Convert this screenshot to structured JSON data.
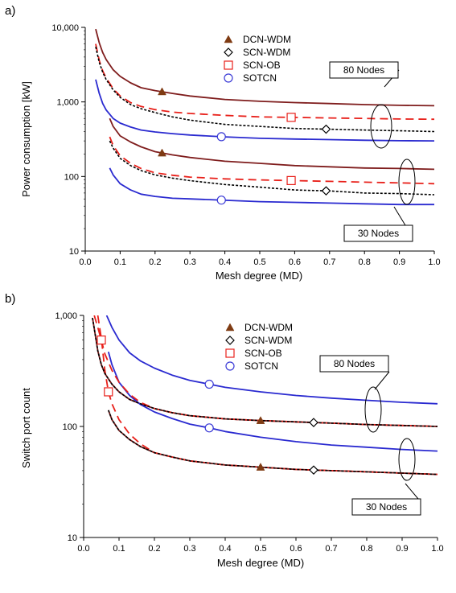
{
  "chart_data": [
    {
      "type": "line",
      "panel_label": "a)",
      "xlabel": "Mesh degree (MD)",
      "ylabel": "Power consumption [kW]",
      "yscale": "log",
      "xlim": [
        0.0,
        1.0
      ],
      "ylim": [
        10,
        10000
      ],
      "xticks": [
        "0.0",
        "0.1",
        "0.2",
        "0.3",
        "0.4",
        "0.5",
        "0.6",
        "0.7",
        "0.8",
        "0.9",
        "1.0"
      ],
      "yticks": [
        {
          "v": 10,
          "label": "10"
        },
        {
          "v": 100,
          "label": "100"
        },
        {
          "v": 1000,
          "label": "1,000"
        },
        {
          "v": 10000,
          "label": "10,000"
        }
      ],
      "legend": {
        "position": "top-center",
        "entries": [
          {
            "label": "DCN-WDM",
            "marker": "triangle",
            "color": "#7f3b13"
          },
          {
            "label": "SCN-WDM",
            "marker": "diamond",
            "color": "#000000"
          },
          {
            "label": "SCN-OB",
            "marker": "square",
            "color": "#e8201a"
          },
          {
            "label": "SOTCN",
            "marker": "circle",
            "color": "#3a3ad6"
          }
        ]
      },
      "annotations": [
        "80 Nodes",
        "30 Nodes"
      ],
      "series": [
        {
          "group": "80 Nodes",
          "style": "dcn",
          "marker_at": 0.22,
          "x": [
            0.03,
            0.04,
            0.05,
            0.06,
            0.08,
            0.1,
            0.13,
            0.16,
            0.2,
            0.25,
            0.3,
            0.4,
            0.5,
            0.6,
            0.7,
            0.8,
            0.9,
            1.0
          ],
          "y": [
            9500,
            6200,
            4600,
            3700,
            2700,
            2200,
            1800,
            1550,
            1420,
            1300,
            1200,
            1080,
            1020,
            980,
            950,
            920,
            900,
            890
          ]
        },
        {
          "group": "80 Nodes",
          "style": "scn_wdm",
          "marker_at": 0.69,
          "x": [
            0.03,
            0.04,
            0.05,
            0.06,
            0.08,
            0.1,
            0.13,
            0.16,
            0.2,
            0.25,
            0.3,
            0.4,
            0.5,
            0.6,
            0.7,
            0.8,
            0.9,
            1.0
          ],
          "y": [
            5500,
            3400,
            2500,
            2000,
            1450,
            1150,
            920,
            810,
            720,
            630,
            570,
            500,
            470,
            440,
            430,
            420,
            410,
            400
          ]
        },
        {
          "group": "80 Nodes",
          "style": "scn_ob",
          "marker_at": 0.59,
          "x": [
            0.03,
            0.04,
            0.05,
            0.06,
            0.08,
            0.1,
            0.13,
            0.16,
            0.2,
            0.25,
            0.3,
            0.4,
            0.5,
            0.6,
            0.7,
            0.8,
            0.9,
            1.0
          ],
          "y": [
            6000,
            3600,
            2600,
            2100,
            1500,
            1200,
            980,
            870,
            790,
            730,
            700,
            660,
            630,
            620,
            610,
            600,
            590,
            585
          ]
        },
        {
          "group": "80 Nodes",
          "style": "sotcn",
          "marker_at": 0.39,
          "x": [
            0.03,
            0.04,
            0.05,
            0.06,
            0.08,
            0.1,
            0.13,
            0.16,
            0.2,
            0.25,
            0.3,
            0.4,
            0.5,
            0.6,
            0.7,
            0.8,
            0.9,
            1.0
          ],
          "y": [
            2000,
            1300,
            950,
            780,
            600,
            520,
            460,
            420,
            395,
            375,
            360,
            340,
            325,
            318,
            312,
            306,
            302,
            300
          ]
        },
        {
          "group": "30 Nodes",
          "style": "dcn",
          "marker_at": 0.22,
          "x": [
            0.07,
            0.08,
            0.1,
            0.13,
            0.16,
            0.2,
            0.25,
            0.3,
            0.4,
            0.5,
            0.6,
            0.7,
            0.8,
            0.9,
            1.0
          ],
          "y": [
            600,
            470,
            350,
            290,
            250,
            215,
            195,
            180,
            160,
            150,
            140,
            135,
            130,
            128,
            125
          ]
        },
        {
          "group": "30 Nodes",
          "style": "scn_wdm",
          "marker_at": 0.69,
          "x": [
            0.07,
            0.08,
            0.1,
            0.13,
            0.16,
            0.2,
            0.25,
            0.3,
            0.4,
            0.5,
            0.6,
            0.7,
            0.8,
            0.9,
            1.0
          ],
          "y": [
            300,
            240,
            175,
            140,
            120,
            105,
            95,
            88,
            78,
            72,
            66,
            64,
            60,
            59,
            57
          ]
        },
        {
          "group": "30 Nodes",
          "style": "scn_ob",
          "marker_at": 0.59,
          "x": [
            0.07,
            0.08,
            0.1,
            0.13,
            0.16,
            0.2,
            0.25,
            0.3,
            0.4,
            0.5,
            0.6,
            0.7,
            0.8,
            0.9,
            1.0
          ],
          "y": [
            340,
            260,
            190,
            150,
            128,
            112,
            104,
            98,
            93,
            90,
            88,
            86,
            84,
            82,
            80
          ]
        },
        {
          "group": "30 Nodes",
          "style": "sotcn",
          "marker_at": 0.39,
          "x": [
            0.07,
            0.08,
            0.1,
            0.13,
            0.16,
            0.2,
            0.25,
            0.3,
            0.4,
            0.5,
            0.6,
            0.7,
            0.8,
            0.9,
            1.0
          ],
          "y": [
            130,
            105,
            80,
            66,
            58,
            54,
            51,
            50,
            48,
            46,
            45,
            44,
            43,
            42,
            42
          ]
        }
      ]
    },
    {
      "type": "line",
      "panel_label": "b)",
      "xlabel": "Mesh degree (MD)",
      "ylabel": "Switch port count",
      "yscale": "log",
      "xlim": [
        0.0,
        1.0
      ],
      "ylim": [
        10,
        1000
      ],
      "xticks": [
        "0.0",
        "0.1",
        "0.2",
        "0.3",
        "0.4",
        "0.5",
        "0.6",
        "0.7",
        "0.8",
        "0.9",
        "1.0"
      ],
      "yticks": [
        {
          "v": 10,
          "label": "10"
        },
        {
          "v": 100,
          "label": "100"
        },
        {
          "v": 1000,
          "label": "1,000"
        }
      ],
      "legend": {
        "position": "top-center",
        "entries": [
          {
            "label": "DCN-WDM",
            "marker": "triangle",
            "color": "#7f3b13"
          },
          {
            "label": "SCN-WDM",
            "marker": "diamond",
            "color": "#000000"
          },
          {
            "label": "SCN-OB",
            "marker": "square",
            "color": "#e8201a"
          },
          {
            "label": "SOTCN",
            "marker": "circle",
            "color": "#3a3ad6"
          }
        ]
      },
      "annotations": [
        "80 Nodes",
        "30 Nodes"
      ],
      "series": [
        {
          "group": "80 Nodes",
          "style": "dcn",
          "marker_at": 0.5,
          "x": [
            0.025,
            0.03,
            0.04,
            0.05,
            0.06,
            0.08,
            0.1,
            0.13,
            0.16,
            0.2,
            0.25,
            0.3,
            0.4,
            0.5,
            0.6,
            0.7,
            0.8,
            0.9,
            1.0
          ],
          "y": [
            950,
            760,
            480,
            360,
            300,
            240,
            205,
            175,
            160,
            145,
            133,
            125,
            117,
            113,
            110,
            107,
            104,
            102,
            100
          ]
        },
        {
          "group": "80 Nodes",
          "style": "scn_wdm",
          "marker_at": 0.65,
          "x": [
            0.025,
            0.03,
            0.04,
            0.05,
            0.06,
            0.08,
            0.1,
            0.13,
            0.16,
            0.2,
            0.25,
            0.3,
            0.4,
            0.5,
            0.6,
            0.7,
            0.8,
            0.9,
            1.0
          ],
          "y": [
            950,
            760,
            480,
            360,
            300,
            240,
            205,
            175,
            160,
            145,
            133,
            125,
            117,
            113,
            110,
            107,
            104,
            102,
            100
          ]
        },
        {
          "group": "80 Nodes",
          "style": "scn_ob",
          "marker_at": 0.05,
          "x": [
            0.03,
            0.04,
            0.05,
            0.06,
            0.08,
            0.1,
            0.13,
            0.16,
            0.2,
            0.25,
            0.3,
            0.4,
            0.5,
            0.6,
            0.7,
            0.8,
            0.9,
            1.0
          ],
          "y": [
            1000,
            780,
            600,
            450,
            320,
            250,
            195,
            165,
            145,
            133,
            125,
            117,
            113,
            110,
            107,
            104,
            102,
            100
          ]
        },
        {
          "group": "80 Nodes",
          "style": "sotcn",
          "marker_at": 0.355,
          "x": [
            0.065,
            0.08,
            0.1,
            0.13,
            0.16,
            0.2,
            0.25,
            0.3,
            0.355,
            0.4,
            0.5,
            0.6,
            0.7,
            0.8,
            0.9,
            1.0
          ],
          "y": [
            1000,
            780,
            600,
            460,
            390,
            335,
            290,
            260,
            240,
            225,
            205,
            190,
            180,
            172,
            165,
            160
          ]
        },
        {
          "group": "30 Nodes",
          "style": "dcn",
          "marker_at": 0.5,
          "x": [
            0.07,
            0.08,
            0.1,
            0.13,
            0.16,
            0.2,
            0.25,
            0.3,
            0.4,
            0.5,
            0.6,
            0.7,
            0.8,
            0.9,
            1.0
          ],
          "y": [
            140,
            115,
            92,
            76,
            66,
            58,
            53,
            49,
            45,
            43,
            41,
            40,
            39,
            38,
            37
          ]
        },
        {
          "group": "30 Nodes",
          "style": "scn_wdm",
          "marker_at": 0.65,
          "x": [
            0.07,
            0.08,
            0.1,
            0.13,
            0.16,
            0.2,
            0.25,
            0.3,
            0.4,
            0.5,
            0.6,
            0.7,
            0.8,
            0.9,
            1.0
          ],
          "y": [
            140,
            115,
            92,
            76,
            66,
            58,
            53,
            49,
            45,
            43,
            41,
            40,
            39,
            38,
            37
          ]
        },
        {
          "group": "30 Nodes",
          "style": "scn_ob",
          "marker_at": 0.07,
          "x": [
            0.04,
            0.05,
            0.06,
            0.07,
            0.08,
            0.1,
            0.13,
            0.16,
            0.2,
            0.25,
            0.3,
            0.4,
            0.5,
            0.6,
            0.7,
            0.8,
            0.9,
            1.0
          ],
          "y": [
            1000,
            620,
            320,
            205,
            160,
            115,
            85,
            70,
            58,
            53,
            49,
            45,
            43,
            41,
            40,
            39,
            38,
            37
          ]
        },
        {
          "group": "30 Nodes",
          "style": "sotcn",
          "marker_at": 0.355,
          "x": [
            0.07,
            0.08,
            0.1,
            0.13,
            0.16,
            0.2,
            0.25,
            0.3,
            0.355,
            0.4,
            0.5,
            0.6,
            0.7,
            0.8,
            0.9,
            1.0
          ],
          "y": [
            470,
            360,
            250,
            190,
            158,
            135,
            118,
            105,
            97,
            90,
            80,
            73,
            68,
            65,
            62,
            60
          ]
        }
      ]
    }
  ],
  "style_map": {
    "dcn": {
      "color": "#7f1d1d",
      "dash": "",
      "width": 1.8,
      "marker": "triangle",
      "marker_color": "#7f3b13"
    },
    "scn_wdm": {
      "color": "#000000",
      "dash": "3,2",
      "width": 1.6,
      "marker": "diamond",
      "marker_color": "#000000"
    },
    "scn_ob": {
      "color": "#e8201a",
      "dash": "10,6",
      "width": 1.8,
      "marker": "square",
      "marker_color": "#e8201a"
    },
    "sotcn": {
      "color": "#2a2ad0",
      "dash": "",
      "width": 1.8,
      "marker": "circle",
      "marker_color": "#3a3ad6"
    }
  }
}
